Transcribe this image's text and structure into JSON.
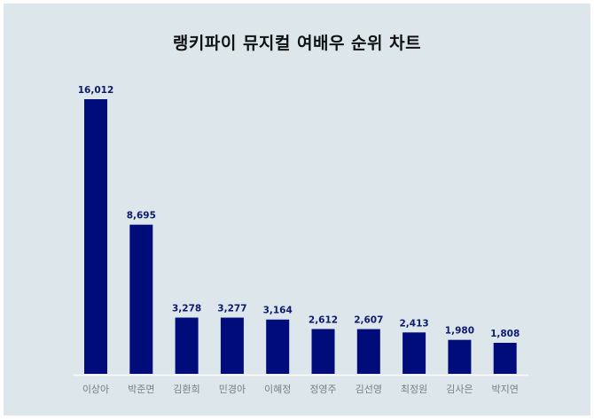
{
  "chart_data": {
    "type": "bar",
    "title": "랭키파이 뮤지컬 여배우 순위 차트",
    "categories": [
      "이상아",
      "박준면",
      "김환희",
      "민경아",
      "이혜정",
      "정영주",
      "김선영",
      "최정원",
      "김사은",
      "박지연"
    ],
    "values": [
      16012,
      8695,
      3278,
      3277,
      3164,
      2612,
      2607,
      2413,
      1980,
      1808
    ],
    "value_labels": [
      "16,012",
      "8,695",
      "3,278",
      "3,277",
      "3,164",
      "2,612",
      "2,607",
      "2,413",
      "1,980",
      "1,808"
    ],
    "xlabel": "",
    "ylabel": "",
    "ylim": [
      0,
      16012
    ],
    "grid": false,
    "legend": "none",
    "colors": {
      "bar": "#000c7a",
      "label": "#0d1a6e",
      "tick": "#7a7f84",
      "axis": "#ffffff",
      "background": "#dce6eb"
    }
  }
}
